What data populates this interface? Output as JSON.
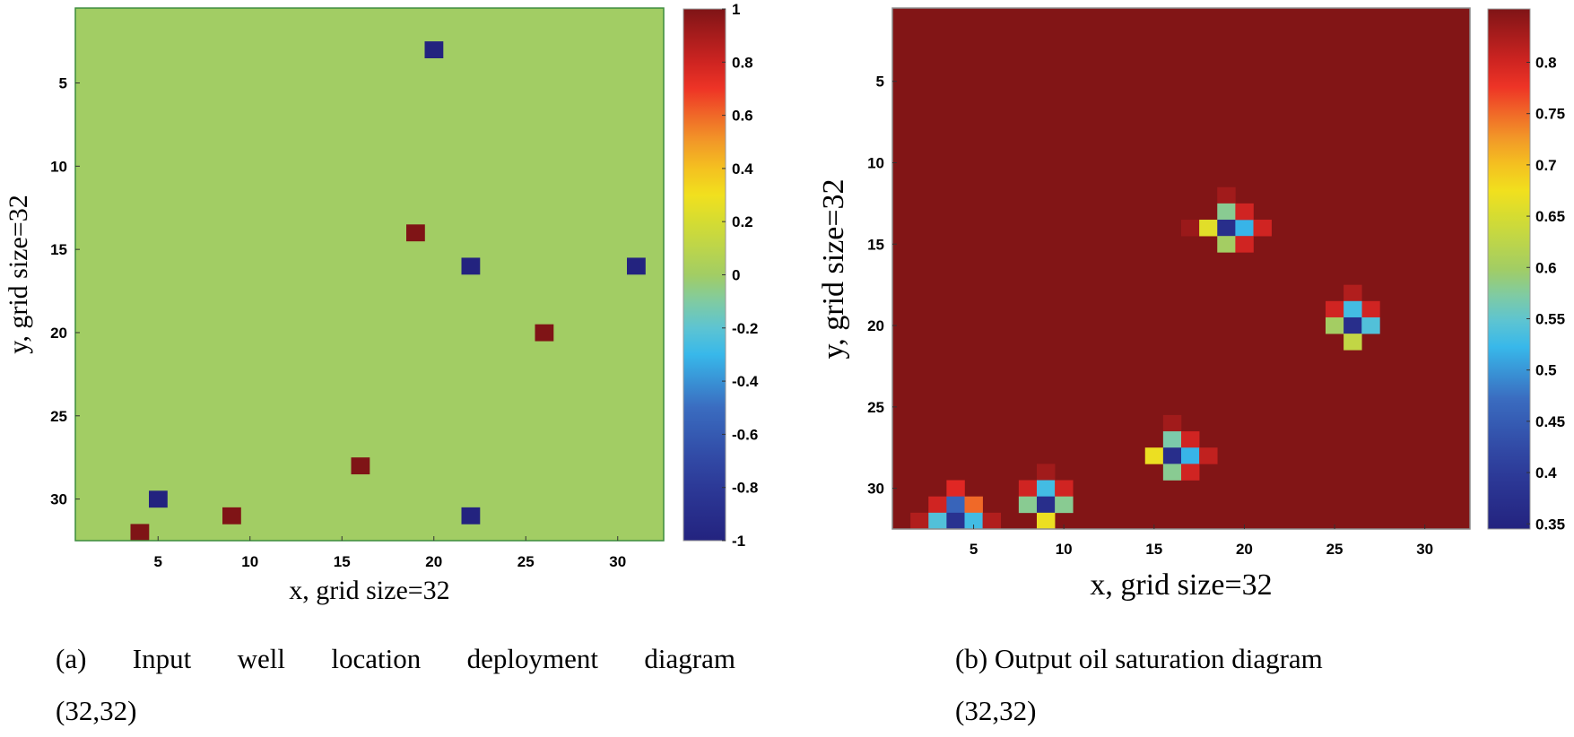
{
  "chart_data": [
    {
      "type": "heatmap",
      "grid": [
        32,
        32
      ],
      "xlabel": "x, grid size=32",
      "ylabel": "y, grid size=32",
      "xticks": [
        5,
        10,
        15,
        20,
        25,
        30
      ],
      "yticks": [
        5,
        10,
        15,
        20,
        25,
        30
      ],
      "xlim": [
        0.5,
        32.5
      ],
      "ylim": [
        0.5,
        32.5
      ],
      "y_reversed": true,
      "colormap": "jet",
      "clim": [
        -1,
        1
      ],
      "colorbar_ticks": [
        1,
        0.8,
        0.6,
        0.4,
        0.2,
        0,
        -0.2,
        -0.4,
        -0.6,
        -0.8,
        -1
      ],
      "colorbar_tick_labels": [
        "1",
        "0.8",
        "0.6",
        "0.4",
        "0.2",
        "0",
        "-0.2",
        "-0.4",
        "-0.6",
        "-0.8",
        "-1"
      ],
      "background_value": 0,
      "cells": [
        {
          "x": 20,
          "y": 3,
          "v": -1
        },
        {
          "x": 19,
          "y": 14,
          "v": 1
        },
        {
          "x": 22,
          "y": 16,
          "v": -1
        },
        {
          "x": 31,
          "y": 16,
          "v": -1
        },
        {
          "x": 26,
          "y": 20,
          "v": 1
        },
        {
          "x": 16,
          "y": 28,
          "v": 1
        },
        {
          "x": 5,
          "y": 30,
          "v": -1
        },
        {
          "x": 9,
          "y": 31,
          "v": 1
        },
        {
          "x": 22,
          "y": 31,
          "v": -1
        },
        {
          "x": 4,
          "y": 32,
          "v": 1
        }
      ],
      "caption_line1": "(a) Input well location deployment diagram",
      "caption_line2": "(32,32)"
    },
    {
      "type": "heatmap",
      "grid": [
        32,
        32
      ],
      "xlabel": "x, grid size=32",
      "ylabel": "y, grid size=32",
      "xticks": [
        5,
        10,
        15,
        20,
        25,
        30
      ],
      "yticks": [
        5,
        10,
        15,
        20,
        25,
        30
      ],
      "xlim": [
        0.5,
        32.5
      ],
      "ylim": [
        0.5,
        32.5
      ],
      "y_reversed": true,
      "colormap": "jet",
      "clim": [
        0.345,
        0.852
      ],
      "colorbar_ticks": [
        0.8,
        0.75,
        0.7,
        0.65,
        0.6,
        0.55,
        0.5,
        0.45,
        0.4,
        0.35
      ],
      "colorbar_tick_labels": [
        "0.8",
        "0.75",
        "0.7",
        "0.65",
        "0.6",
        "0.55",
        "0.5",
        "0.45",
        "0.4",
        "0.35"
      ],
      "background_value": 0.85,
      "cells": [
        {
          "x": 19,
          "y": 12,
          "v": 0.83
        },
        {
          "x": 17,
          "y": 14,
          "v": 0.835
        },
        {
          "x": 19,
          "y": 13,
          "v": 0.58
        },
        {
          "x": 18,
          "y": 14,
          "v": 0.66
        },
        {
          "x": 19,
          "y": 14,
          "v": 0.37
        },
        {
          "x": 20,
          "y": 14,
          "v": 0.52
        },
        {
          "x": 19,
          "y": 15,
          "v": 0.6
        },
        {
          "x": 20,
          "y": 13,
          "v": 0.8
        },
        {
          "x": 20,
          "y": 15,
          "v": 0.8
        },
        {
          "x": 21,
          "y": 14,
          "v": 0.8
        },
        {
          "x": 26,
          "y": 18,
          "v": 0.82
        },
        {
          "x": 25,
          "y": 19,
          "v": 0.8
        },
        {
          "x": 27,
          "y": 19,
          "v": 0.8
        },
        {
          "x": 26,
          "y": 19,
          "v": 0.53
        },
        {
          "x": 25,
          "y": 20,
          "v": 0.6
        },
        {
          "x": 26,
          "y": 20,
          "v": 0.37
        },
        {
          "x": 27,
          "y": 20,
          "v": 0.54
        },
        {
          "x": 26,
          "y": 21,
          "v": 0.63
        },
        {
          "x": 16,
          "y": 26,
          "v": 0.83
        },
        {
          "x": 16,
          "y": 27,
          "v": 0.57
        },
        {
          "x": 17,
          "y": 27,
          "v": 0.8
        },
        {
          "x": 15,
          "y": 28,
          "v": 0.67
        },
        {
          "x": 16,
          "y": 28,
          "v": 0.37
        },
        {
          "x": 17,
          "y": 28,
          "v": 0.52
        },
        {
          "x": 18,
          "y": 28,
          "v": 0.81
        },
        {
          "x": 16,
          "y": 29,
          "v": 0.58
        },
        {
          "x": 17,
          "y": 29,
          "v": 0.8
        },
        {
          "x": 9,
          "y": 29,
          "v": 0.83
        },
        {
          "x": 8,
          "y": 30,
          "v": 0.8
        },
        {
          "x": 9,
          "y": 30,
          "v": 0.53
        },
        {
          "x": 10,
          "y": 30,
          "v": 0.8
        },
        {
          "x": 8,
          "y": 31,
          "v": 0.58
        },
        {
          "x": 9,
          "y": 31,
          "v": 0.37
        },
        {
          "x": 10,
          "y": 31,
          "v": 0.58
        },
        {
          "x": 9,
          "y": 32,
          "v": 0.67
        },
        {
          "x": 4,
          "y": 30,
          "v": 0.79
        },
        {
          "x": 3,
          "y": 31,
          "v": 0.8
        },
        {
          "x": 4,
          "y": 31,
          "v": 0.46
        },
        {
          "x": 5,
          "y": 31,
          "v": 0.75
        },
        {
          "x": 2,
          "y": 32,
          "v": 0.82
        },
        {
          "x": 3,
          "y": 32,
          "v": 0.54
        },
        {
          "x": 4,
          "y": 32,
          "v": 0.38
        },
        {
          "x": 5,
          "y": 32,
          "v": 0.53
        },
        {
          "x": 6,
          "y": 32,
          "v": 0.82
        }
      ],
      "caption_line1": "(b) Output oil saturation diagram",
      "caption_line2": "(32,32)"
    }
  ]
}
